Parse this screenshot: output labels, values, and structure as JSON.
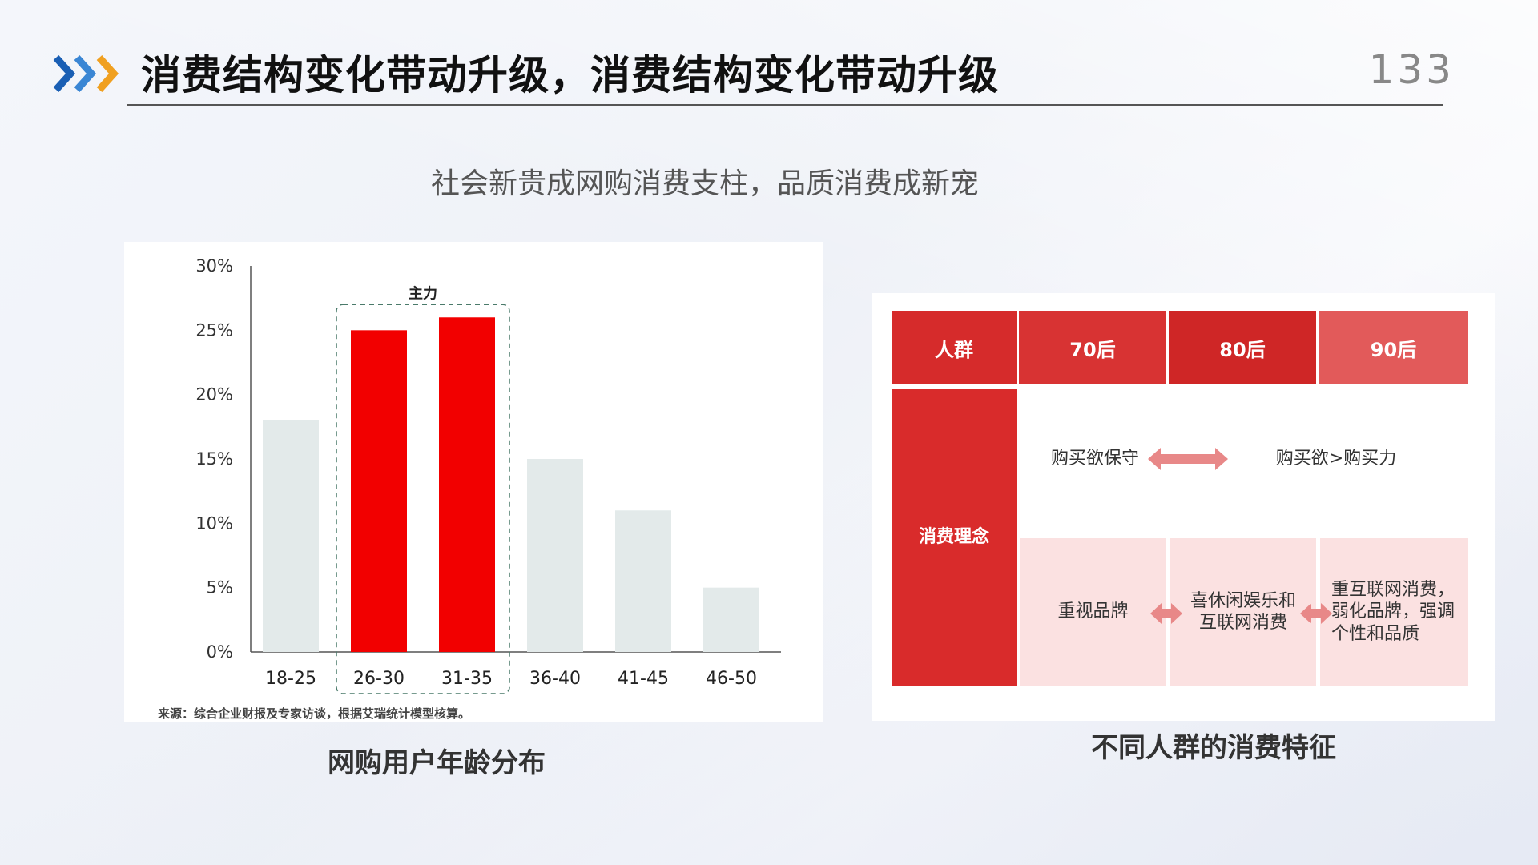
{
  "header": {
    "title": "消费结构变化带动升级，消费结构变化带动升级",
    "page_number": "133"
  },
  "subtitle": "社会新贵成网购消费支柱，品质消费成新宠",
  "chart": {
    "caption": "网购用户年龄分布",
    "source": "来源：综合企业财报及专家访谈，根据艾瑞统计模型核算。",
    "highlight_label": "主力"
  },
  "chart_data": {
    "type": "bar",
    "categories": [
      "18-25",
      "26-30",
      "31-35",
      "36-40",
      "41-45",
      "46-50"
    ],
    "values": [
      18,
      25,
      26,
      15,
      11,
      5
    ],
    "highlighted": [
      "26-30",
      "31-35"
    ],
    "ylim": [
      0,
      30
    ],
    "yticks": [
      "0%",
      "5%",
      "10%",
      "15%",
      "20%",
      "25%",
      "30%"
    ],
    "colors": {
      "normal": "#e3eaea",
      "highlight": "#f20000"
    },
    "annotation": "主力",
    "grid": false
  },
  "table": {
    "caption": "不同人群的消费特征",
    "headers": [
      "人群",
      "70后",
      "80后",
      "90后"
    ],
    "row_label": "消费理念",
    "row1": {
      "left": "购买欲保守",
      "right": "购买欲>购买力"
    },
    "row2": [
      "重视品牌",
      "喜休闲娱乐和互联网消费",
      "重互联网消费，弱化品牌，强调个性和品质"
    ],
    "colors": {
      "header_label": "#d62b2b",
      "h70": "#d83333",
      "h80": "#cf2626",
      "h90": "#e25a5a",
      "row_label_bg": "#d92b2b",
      "light_cell": "#fbe1e1",
      "arrow": "#e88888"
    }
  }
}
